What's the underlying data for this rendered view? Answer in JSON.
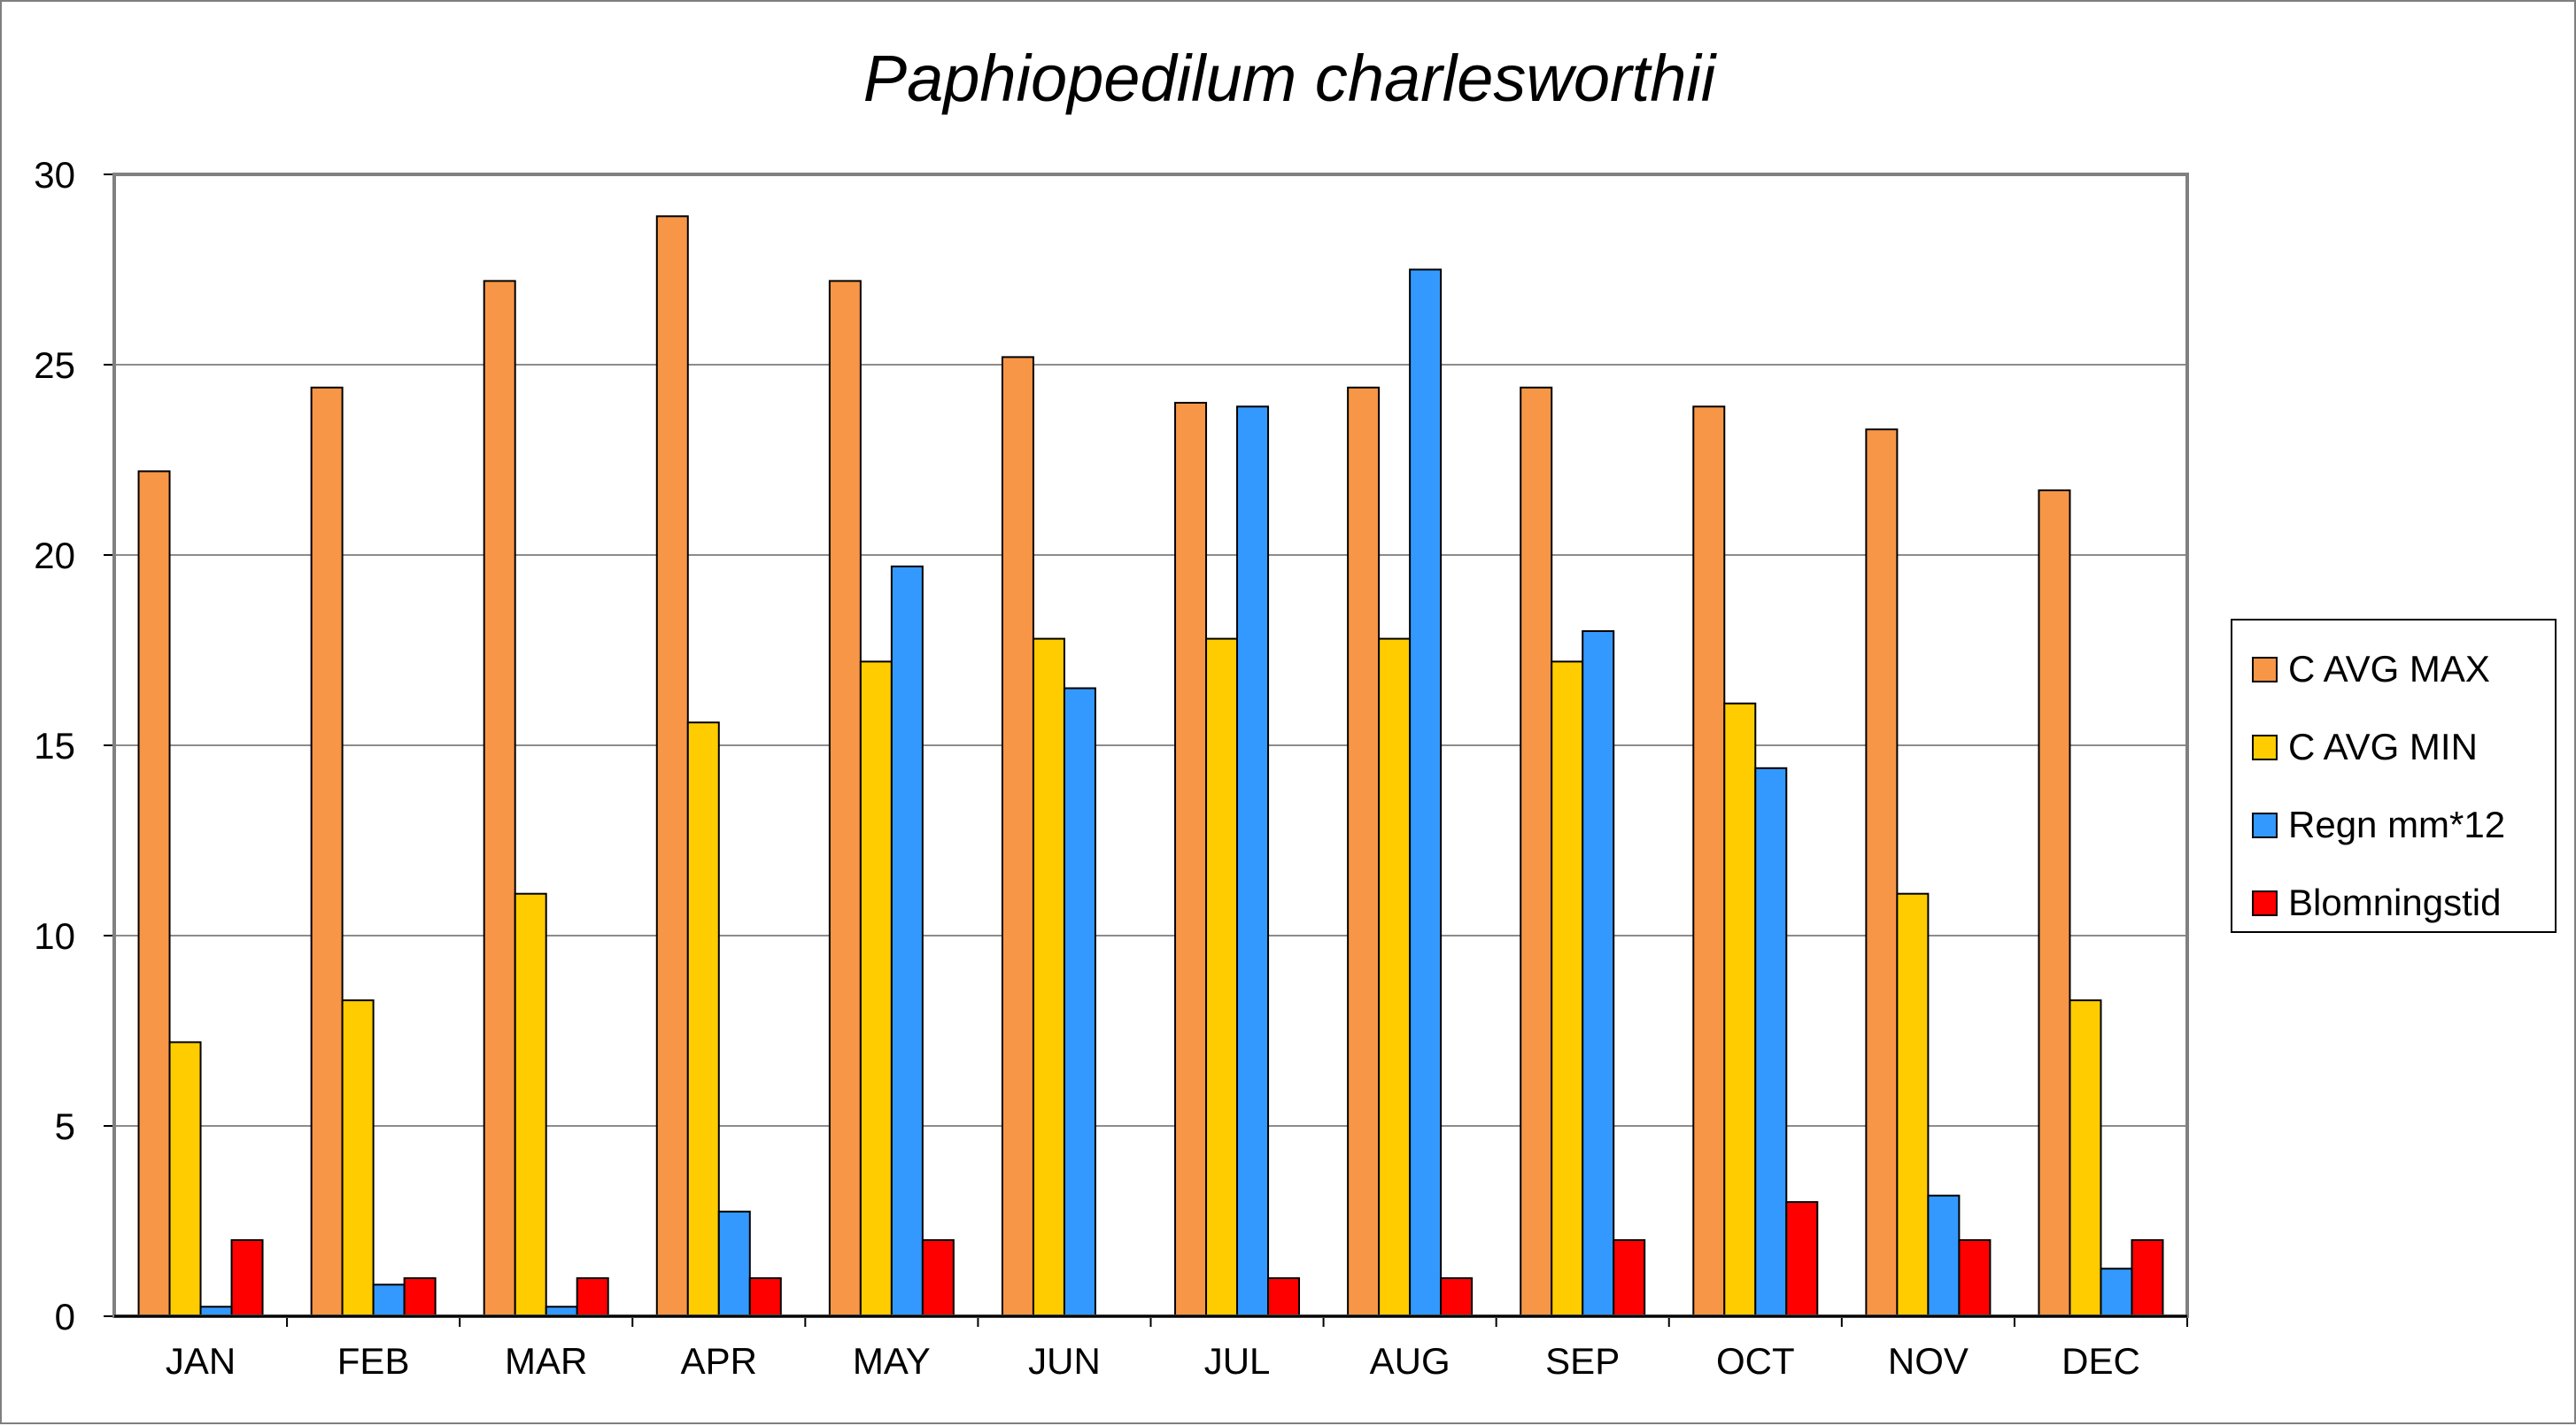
{
  "chart_data": {
    "type": "bar",
    "title": "Paphiopedilum charlesworthii",
    "xlabel": "",
    "ylabel": "",
    "ylim": [
      0,
      30
    ],
    "yticks": [
      0,
      5,
      10,
      15,
      20,
      25,
      30
    ],
    "grid": true,
    "legend_position": "right",
    "categories": [
      "JAN",
      "FEB",
      "MAR",
      "APR",
      "MAY",
      "JUN",
      "JUL",
      "AUG",
      "SEP",
      "OCT",
      "NOV",
      "DEC"
    ],
    "series": [
      {
        "name": "C AVG MAX",
        "color": "#F79646",
        "values": [
          22.2,
          24.4,
          27.2,
          28.9,
          27.2,
          25.2,
          24.0,
          24.4,
          24.4,
          23.9,
          23.3,
          21.7
        ]
      },
      {
        "name": "C AVG MIN",
        "color": "#FFCC00",
        "values": [
          7.2,
          8.3,
          11.1,
          15.6,
          17.2,
          17.8,
          17.8,
          17.8,
          17.2,
          16.1,
          11.1,
          8.3
        ]
      },
      {
        "name": "Regn mm*12",
        "color": "#3399FF",
        "values": [
          0.25,
          0.83,
          0.25,
          2.75,
          19.7,
          16.5,
          23.9,
          27.5,
          18.0,
          14.4,
          3.17,
          1.25
        ]
      },
      {
        "name": "Blomningstid",
        "color": "#FF0000",
        "values": [
          2,
          1,
          1,
          1,
          2,
          0,
          1,
          1,
          2,
          3,
          2,
          2
        ]
      }
    ]
  }
}
